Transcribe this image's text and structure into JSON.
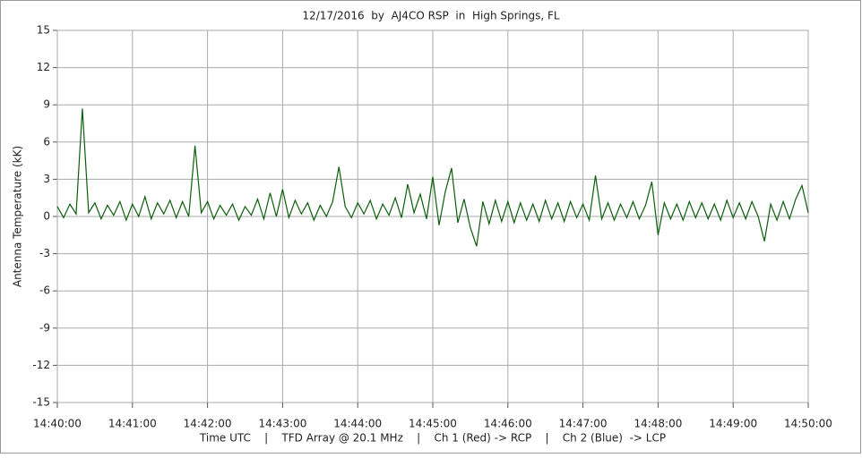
{
  "chart_data": {
    "type": "line",
    "title": "12/17/2016  by  AJ4CO RSP  in  High Springs, FL",
    "x_label": "Time UTC    |    TFD Array @ 20.1 MHz    |    Ch 1 (Red) -> RCP    |    Ch 2 (Blue)  -> LCP",
    "y_label": "Antenna Temperature (kK)",
    "color": "#0b5e0b",
    "grid": true,
    "xlim": [
      "14:40:00",
      "14:50:00"
    ],
    "xticks": [
      "14:40:00",
      "14:41:00",
      "14:42:00",
      "14:43:00",
      "14:44:00",
      "14:45:00",
      "14:46:00",
      "14:47:00",
      "14:48:00",
      "14:49:00",
      "14:50:00"
    ],
    "ylim": [
      -15,
      15
    ],
    "yticks": [
      15,
      12,
      9,
      6,
      3,
      0,
      -3,
      -6,
      -9,
      -12,
      -15
    ],
    "x": [
      "14:40:00",
      "14:40:05",
      "14:40:10",
      "14:40:15",
      "14:40:20",
      "14:40:25",
      "14:40:30",
      "14:40:35",
      "14:40:40",
      "14:40:45",
      "14:40:50",
      "14:40:55",
      "14:41:00",
      "14:41:05",
      "14:41:10",
      "14:41:15",
      "14:41:20",
      "14:41:25",
      "14:41:30",
      "14:41:35",
      "14:41:40",
      "14:41:45",
      "14:41:50",
      "14:41:55",
      "14:42:00",
      "14:42:05",
      "14:42:10",
      "14:42:15",
      "14:42:20",
      "14:42:25",
      "14:42:30",
      "14:42:35",
      "14:42:40",
      "14:42:45",
      "14:42:50",
      "14:42:55",
      "14:43:00",
      "14:43:05",
      "14:43:10",
      "14:43:15",
      "14:43:20",
      "14:43:25",
      "14:43:30",
      "14:43:35",
      "14:43:40",
      "14:43:45",
      "14:43:50",
      "14:43:55",
      "14:44:00",
      "14:44:05",
      "14:44:10",
      "14:44:15",
      "14:44:20",
      "14:44:25",
      "14:44:30",
      "14:44:35",
      "14:44:40",
      "14:44:45",
      "14:44:50",
      "14:44:55",
      "14:45:00",
      "14:45:05",
      "14:45:10",
      "14:45:15",
      "14:45:20",
      "14:45:25",
      "14:45:30",
      "14:45:35",
      "14:45:40",
      "14:45:45",
      "14:45:50",
      "14:45:55",
      "14:46:00",
      "14:46:05",
      "14:46:10",
      "14:46:15",
      "14:46:20",
      "14:46:25",
      "14:46:30",
      "14:46:35",
      "14:46:40",
      "14:46:45",
      "14:46:50",
      "14:46:55",
      "14:47:00",
      "14:47:05",
      "14:47:10",
      "14:47:15",
      "14:47:20",
      "14:47:25",
      "14:47:30",
      "14:47:35",
      "14:47:40",
      "14:47:45",
      "14:47:50",
      "14:47:55",
      "14:48:00",
      "14:48:05",
      "14:48:10",
      "14:48:15",
      "14:48:20",
      "14:48:25",
      "14:48:30",
      "14:48:35",
      "14:48:40",
      "14:48:45",
      "14:48:50",
      "14:48:55",
      "14:49:00",
      "14:49:05",
      "14:49:10",
      "14:49:15",
      "14:49:20",
      "14:49:25",
      "14:49:30",
      "14:49:35",
      "14:49:40",
      "14:49:45",
      "14:49:50",
      "14:49:55",
      "14:50:00"
    ],
    "values": [
      0.8,
      -0.1,
      1.0,
      0.2,
      8.7,
      0.3,
      1.1,
      -0.2,
      0.9,
      0.1,
      1.2,
      -0.3,
      1.0,
      0.0,
      1.6,
      -0.2,
      1.1,
      0.2,
      1.3,
      -0.1,
      1.2,
      0.0,
      5.7,
      0.3,
      1.2,
      -0.2,
      0.9,
      0.1,
      1.0,
      -0.3,
      0.8,
      0.1,
      1.4,
      -0.2,
      1.9,
      0.0,
      2.2,
      -0.1,
      1.3,
      0.2,
      1.1,
      -0.3,
      0.9,
      0.0,
      1.2,
      4.0,
      0.8,
      -0.1,
      1.1,
      0.2,
      1.3,
      -0.2,
      1.0,
      0.1,
      1.5,
      -0.1,
      2.6,
      0.3,
      1.8,
      -0.2,
      3.2,
      -0.7,
      2.0,
      3.9,
      -0.5,
      1.4,
      -0.9,
      -2.4,
      1.2,
      -0.6,
      1.3,
      -0.4,
      1.2,
      -0.5,
      1.1,
      -0.3,
      1.0,
      -0.4,
      1.3,
      -0.2,
      1.1,
      -0.4,
      1.2,
      -0.1,
      1.0,
      -0.3,
      3.3,
      -0.2,
      1.1,
      -0.3,
      1.0,
      -0.1,
      1.2,
      -0.2,
      0.9,
      2.8,
      -1.5,
      1.1,
      -0.2,
      1.0,
      -0.3,
      1.2,
      -0.1,
      1.1,
      -0.2,
      1.0,
      -0.3,
      1.3,
      -0.1,
      1.1,
      -0.2,
      1.2,
      0.0,
      -2.0,
      1.0,
      -0.3,
      1.2,
      -0.2,
      1.4,
      2.5,
      0.3
    ]
  }
}
